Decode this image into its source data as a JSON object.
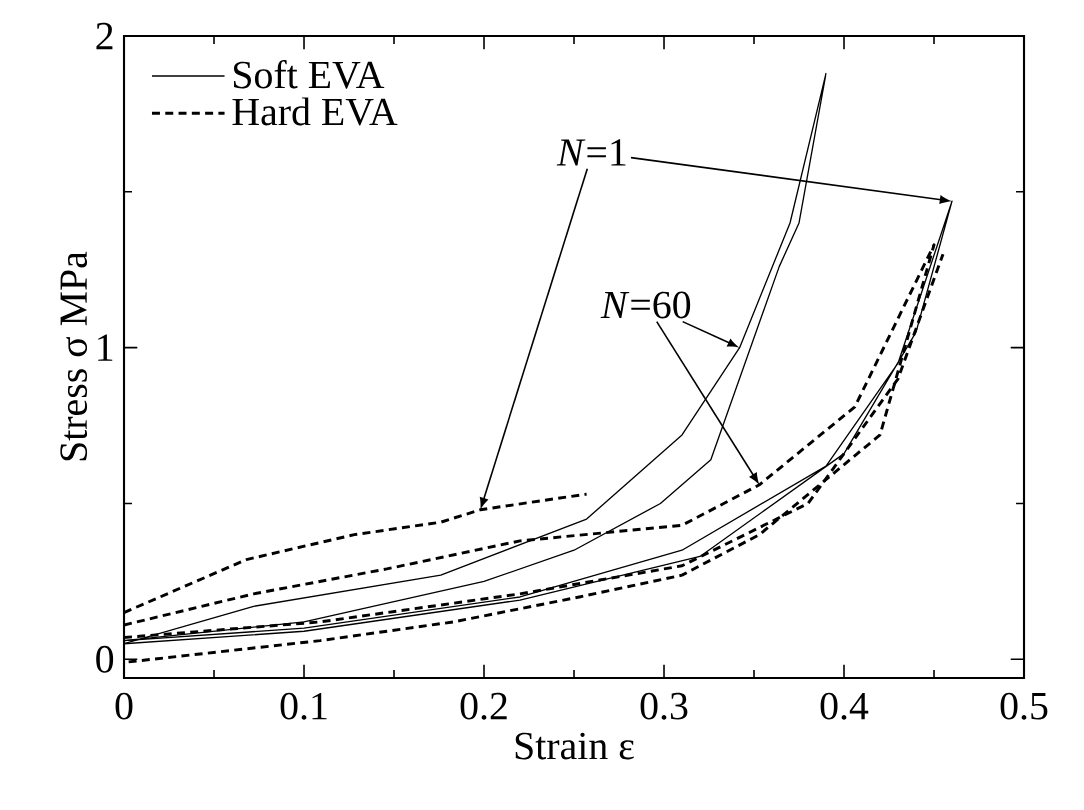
{
  "chart_data": {
    "type": "line",
    "xlabel": "Strain  ε",
    "ylabel": "Stress  σ  MPa",
    "xlim": [
      0,
      0.5
    ],
    "ylim": [
      -0.06,
      2
    ],
    "xticks": [
      0,
      0.1,
      0.2,
      0.3,
      0.4,
      0.5
    ],
    "yticks": [
      0,
      1,
      2
    ],
    "legend": "top left",
    "grid": false,
    "marker": "none",
    "series": [
      {
        "name": "Soft EVA",
        "color": "#000000",
        "line_style": "solid",
        "x": [
          0,
          0.072,
          0.176,
          0.257,
          0.31,
          0.342,
          0.37,
          0.39,
          0.375,
          0.364,
          0.326,
          0.298,
          0.25,
          0.2,
          0.1,
          0
        ],
        "values": [
          0.05,
          0.17,
          0.27,
          0.45,
          0.72,
          1.0,
          1.4,
          1.88,
          1.4,
          1.26,
          0.64,
          0.5,
          0.35,
          0.25,
          0.12,
          0.06
        ]
      },
      {
        "color": "#000000",
        "line_style": "solid",
        "x": [
          0,
          0.1,
          0.22,
          0.31,
          0.39,
          0.43,
          0.46,
          0.44,
          0.4,
          0.32,
          0.22,
          0.1,
          0
        ],
        "values": [
          0.06,
          0.1,
          0.2,
          0.35,
          0.62,
          0.95,
          1.47,
          1.05,
          0.66,
          0.33,
          0.19,
          0.09,
          0.05
        ]
      },
      {
        "name": "Hard EVA",
        "color": "#000000",
        "line_style": "dashed",
        "x": [
          0,
          0.068,
          0.128,
          0.176,
          0.198,
          0.257
        ],
        "values": [
          0.15,
          0.32,
          0.4,
          0.44,
          0.48,
          0.53
        ]
      },
      {
        "color": "#000000",
        "line_style": "dashed",
        "x": [
          0,
          0.072,
          0.146,
          0.22,
          0.31,
          0.353,
          0.406,
          0.45,
          0.42,
          0.353,
          0.31,
          0.253,
          0.183,
          0.109,
          0
        ],
        "values": [
          0.11,
          0.21,
          0.29,
          0.38,
          0.43,
          0.56,
          0.81,
          1.33,
          0.72,
          0.4,
          0.27,
          0.2,
          0.12,
          0.06,
          -0.01
        ]
      },
      {
        "color": "#000000",
        "line_style": "dashed",
        "x": [
          0,
          0.109,
          0.22,
          0.31,
          0.38,
          0.43,
          0.455
        ],
        "values": [
          0.07,
          0.12,
          0.21,
          0.3,
          0.5,
          0.9,
          1.3
        ]
      }
    ],
    "annotations": [
      {
        "text": "*N*=1",
        "x": 0.198,
        "y": 0.48
      },
      {
        "text": "*N*=60",
        "x": 0.342,
        "y": 1.0
      }
    ]
  }
}
